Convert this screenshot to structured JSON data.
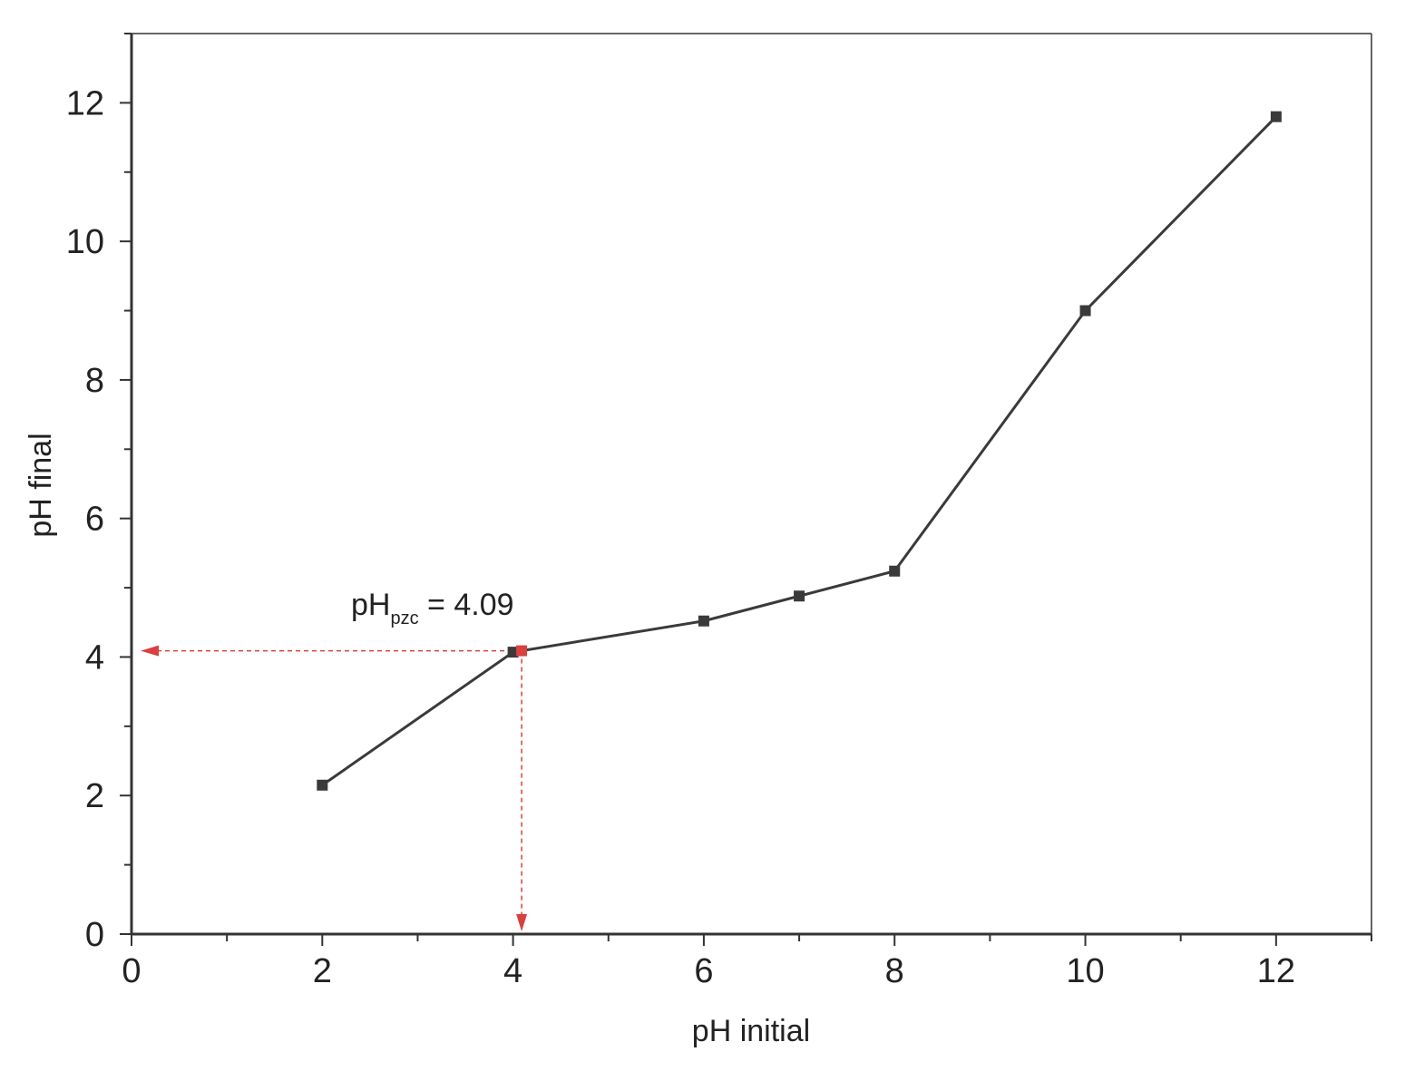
{
  "chart_data": {
    "type": "line",
    "xlabel": "pH initial",
    "ylabel": "pH final",
    "xlim": [
      0,
      13
    ],
    "ylim": [
      0,
      13
    ],
    "x_ticks": [
      0,
      2,
      4,
      6,
      8,
      10,
      12
    ],
    "y_ticks": [
      0,
      2,
      4,
      6,
      8,
      10,
      12
    ],
    "grid": false,
    "series": [
      {
        "x": [
          2,
          4,
          6,
          7,
          8,
          10,
          12
        ],
        "y": [
          2.15,
          4.07,
          4.52,
          4.88,
          5.24,
          9.0,
          11.8
        ],
        "color": "#3a3a3a",
        "marker": "square"
      }
    ],
    "annotation": {
      "prefix": "pH",
      "subscript": "pzc",
      "suffix": " = 4.09",
      "point": {
        "x": 4.09,
        "y": 4.09
      },
      "color": "#d94040"
    }
  }
}
